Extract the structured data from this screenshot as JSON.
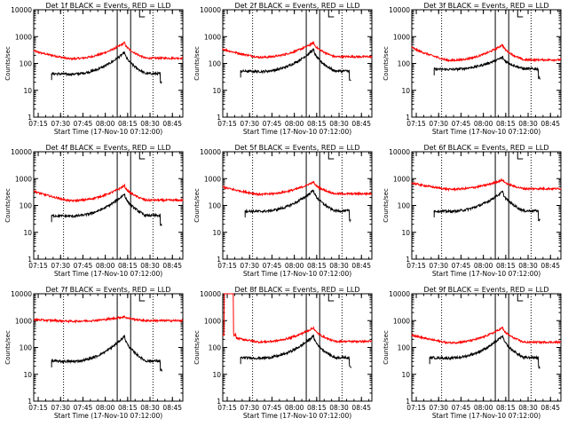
{
  "chart_data": {
    "type": "line",
    "yscale": "log",
    "ylim": [
      1,
      10000
    ],
    "y_ticks": [
      "1",
      "10",
      "100",
      "1000",
      "10000"
    ],
    "x_range": [
      "07:12",
      "08:52"
    ],
    "x_ticks": [
      "07:15",
      "07:30",
      "07:45",
      "08:00",
      "08:15",
      "08:30",
      "08:45"
    ],
    "xlabel": "Start Time (17-Nov-10 07:12:00)",
    "ylabel": "Counts/sec",
    "colors": {
      "events": "#000000",
      "lld": "#ff0000"
    },
    "dotted_lines": [
      "07:32",
      "08:32"
    ],
    "solid_lines": [
      "08:08",
      "08:17"
    ],
    "flag_time": "08:23",
    "panels": [
      {
        "title": "Det 1f BLACK = Events, RED = LLD",
        "red_base": 150,
        "red_peak": 600,
        "red_start": 300,
        "black_base": 40,
        "black_peak": 260,
        "black_start": "07:24",
        "red_spike": 0
      },
      {
        "title": "Det 2f BLACK = Events, RED = LLD",
        "red_base": 170,
        "red_peak": 600,
        "red_start": 350,
        "black_base": 50,
        "black_peak": 330,
        "black_start": "07:24",
        "red_spike": 0
      },
      {
        "title": "Det 3f BLACK = Events, RED = LLD",
        "red_base": 130,
        "red_peak": 500,
        "red_start": 400,
        "black_base": 60,
        "black_peak": 170,
        "black_start": "07:27",
        "red_spike": 0
      },
      {
        "title": "Det 4f BLACK = Events, RED = LLD",
        "red_base": 150,
        "red_peak": 550,
        "red_start": 350,
        "black_base": 40,
        "black_peak": 270,
        "black_start": "07:24",
        "red_spike": 0
      },
      {
        "title": "Det 5f BLACK = Events, RED = LLD",
        "red_base": 260,
        "red_peak": 750,
        "red_start": 500,
        "black_base": 60,
        "black_peak": 370,
        "black_start": "07:27",
        "red_spike": 0
      },
      {
        "title": "Det 6f BLACK = Events, RED = LLD",
        "red_base": 400,
        "red_peak": 900,
        "red_start": 700,
        "black_base": 60,
        "black_peak": 330,
        "black_start": "07:27",
        "red_spike": 0
      },
      {
        "title": "Det 7f BLACK = Events, RED = LLD",
        "red_base": 950,
        "red_peak": 1400,
        "red_start": 1100,
        "black_base": 30,
        "black_peak": 270,
        "black_start": "07:24",
        "red_spike": 0
      },
      {
        "title": "Det 8f BLACK = Events, RED = LLD",
        "red_base": 160,
        "red_peak": 550,
        "red_start": 300,
        "black_base": 40,
        "black_peak": 270,
        "black_start": "07:24",
        "red_spike": 1
      },
      {
        "title": "Det 9f BLACK = Events, RED = LLD",
        "red_base": 150,
        "red_peak": 550,
        "red_start": 300,
        "black_base": 40,
        "black_peak": 270,
        "black_start": "07:24",
        "red_spike": 0
      }
    ]
  }
}
